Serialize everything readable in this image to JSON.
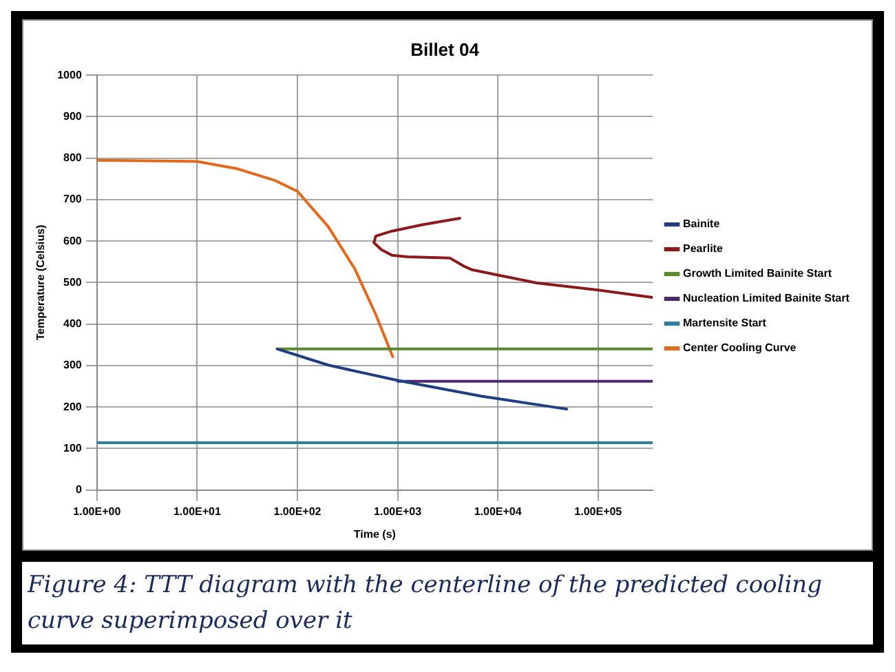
{
  "chart_data": {
    "type": "line",
    "title": "Billet 04",
    "xlabel": "Time (s)",
    "ylabel": "Temperature (Celsius)",
    "log": "x",
    "xlim": [
      1,
      350000
    ],
    "ylim": [
      0,
      1000
    ],
    "xticks": [
      {
        "value": 1,
        "label": "1.00E+00"
      },
      {
        "value": 10,
        "label": "1.00E+01"
      },
      {
        "value": 100,
        "label": "1.00E+02"
      },
      {
        "value": 1000,
        "label": "1.00E+03"
      },
      {
        "value": 10000,
        "label": "1.00E+04"
      },
      {
        "value": 100000,
        "label": "1.00E+05"
      }
    ],
    "yticks": [
      0,
      100,
      200,
      300,
      400,
      500,
      600,
      700,
      800,
      900,
      1000
    ],
    "grid": true,
    "legend": "right",
    "marker": "none",
    "line_style": "solid",
    "series": [
      {
        "name": "Bainite",
        "color": "#1f3f80",
        "x": [
          63,
          203,
          1000,
          6900,
          10000,
          48600
        ],
        "values": [
          340,
          301,
          264,
          226,
          220,
          195
        ]
      },
      {
        "name": "Pearlite",
        "color": "#8b1a1a",
        "x": [
          4170,
          1820,
          875,
          605,
          580,
          690,
          875,
          1260,
          3330,
          4540,
          5500,
          10000,
          24500,
          100000,
          350000
        ],
        "values": [
          655,
          640,
          624,
          612,
          596,
          579,
          566,
          562,
          559,
          540,
          531,
          518,
          499,
          482,
          464
        ]
      },
      {
        "name": "Growth Limited Bainite Start",
        "color": "#5a8a2a",
        "x": [
          63,
          350000
        ],
        "values": [
          340,
          340
        ]
      },
      {
        "name": "Nucleation Limited Bainite Start",
        "color": "#4b2a6e",
        "x": [
          1000,
          350000
        ],
        "values": [
          262,
          262
        ]
      },
      {
        "name": "Martensite Start",
        "color": "#2e7e9e",
        "x": [
          1,
          350000
        ],
        "values": [
          114,
          114
        ]
      },
      {
        "name": "Center Cooling Curve",
        "color": "#e06a1e",
        "x": [
          1,
          10,
          25.5,
          60,
          100,
          203,
          372,
          605,
          895
        ],
        "values": [
          795,
          792,
          774,
          746,
          720,
          635,
          534,
          423,
          321
        ]
      }
    ],
    "annotations": [
      "Figure 4: TTT diagram with the centerline of the predicted cooling curve superimposed over it"
    ]
  }
}
